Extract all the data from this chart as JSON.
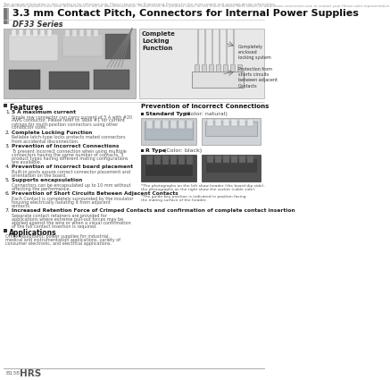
{
  "bg_color": "#ffffff",
  "top_disclaimer_line1": "The product information in this catalog is for reference only. Please request the Engineering Drawing for the most current and accurate design information.",
  "top_disclaimer_line2": "All non-RoHS products have been discontinued or will be discontinued soon. Please check the products status on the Hirose website RoHS search at www.hirose-connectors.com or contact your Hirose sales representative.",
  "title": "3.3 mm Contact Pitch, Connectors for Internal Power Supplies",
  "series": "DF33 Series",
  "features_title": "Features",
  "features": [
    {
      "num": "1.",
      "head": "5 A maximum current",
      "body": "Single row connector can carry current of 5 A with #20 AWG conductor. Please refer to Table #1 for current ratings for multi-position connectors using other conductor sizes."
    },
    {
      "num": "2.",
      "head": "Complete Locking Function",
      "body": "Reliable latch-type locks protects mated connectors from accidental disconnection."
    },
    {
      "num": "3.",
      "head": "Prevention of Incorrect Connections",
      "body": "To prevent incorrect connection when using multiple connectors having the same number of contacts, 3 product types having different mating configurations are available."
    },
    {
      "num": "4.",
      "head": "Prevention of incorrect board placement",
      "body": "Built-in posts assure correct connector placement and orientation on the board."
    },
    {
      "num": "5.",
      "head": "Supports encapsulation",
      "body": "Connectors can be encapsulated up to 10 mm without affecting the performance."
    },
    {
      "num": "6.",
      "head": "Prevention of Short Circuits Between Adjacent Contacts",
      "body": "Each Contact is completely surrounded by the insulator housing electrically isolating it from adjacent contacts."
    },
    {
      "num": "7.",
      "head": "Increased Retention Force of Crimped Contacts and confirmation of complete contact insertion",
      "body": "Separate contact retainers are provided for applications where extreme pull-out forces may be applied against the wire or when a visual confirmation of the full contact insertion is required."
    }
  ],
  "applications_title": "Applications",
  "applications_body": "Office equipment, power supplies for industrial, medical and instrumentation applications, variety of consumer electronic, and electrical applications.",
  "right_section_title": "Prevention of Incorrect Connections",
  "standard_type_label_bold": "Standard Type",
  "standard_type_label_normal": " (Color: natural)",
  "r_type_label_bold": "R Type",
  "r_type_label_normal": " (Color: black)",
  "footnote1": "*The photographs on the left show header (the board dip side),",
  "footnote2": "the photographs on the right show the socket (cable side).",
  "footnote3": "*The guide key position is indicated in position facing",
  "footnote4": "the mating surface of the header.",
  "complete_locking_title": "Complete\nLocking\nFunction",
  "completely_enclosed": "Completely\nenclosed\nlocking system",
  "protection_from": "Protection from\nshorts circuits\nbetween adjacent\nContacts",
  "bottom_page": "B138",
  "bottom_brand": "HRS"
}
